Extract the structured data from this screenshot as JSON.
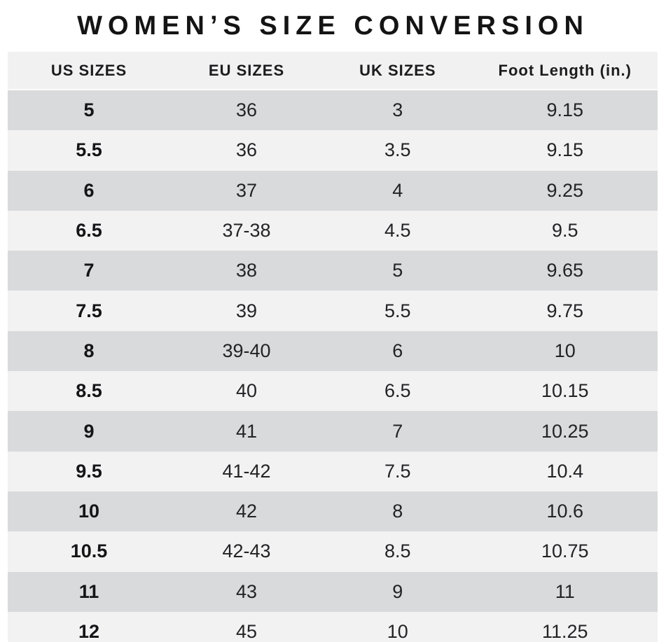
{
  "title": "WOMEN’S SIZE CONVERSION",
  "colors": {
    "row_dark": "#d9dadb",
    "row_light": "#f2f2f3",
    "header_bg": "#f1f1f1",
    "text": "#1d1d1f",
    "background": "#ffffff"
  },
  "chart_data": {
    "type": "table",
    "title": "WOMEN’S SIZE CONVERSION",
    "columns": [
      "US SIZES",
      "EU SIZES",
      "UK SIZES",
      "Foot Length (in.)"
    ],
    "rows": [
      {
        "us": "5",
        "eu": "36",
        "uk": "3",
        "foot": "9.15"
      },
      {
        "us": "5.5",
        "eu": "36",
        "uk": "3.5",
        "foot": "9.15"
      },
      {
        "us": "6",
        "eu": "37",
        "uk": "4",
        "foot": "9.25"
      },
      {
        "us": "6.5",
        "eu": "37-38",
        "uk": "4.5",
        "foot": "9.5"
      },
      {
        "us": "7",
        "eu": "38",
        "uk": "5",
        "foot": "9.65"
      },
      {
        "us": "7.5",
        "eu": "39",
        "uk": "5.5",
        "foot": "9.75"
      },
      {
        "us": "8",
        "eu": "39-40",
        "uk": "6",
        "foot": "10"
      },
      {
        "us": "8.5",
        "eu": "40",
        "uk": "6.5",
        "foot": "10.15"
      },
      {
        "us": "9",
        "eu": "41",
        "uk": "7",
        "foot": "10.25"
      },
      {
        "us": "9.5",
        "eu": "41-42",
        "uk": "7.5",
        "foot": "10.4"
      },
      {
        "us": "10",
        "eu": "42",
        "uk": "8",
        "foot": "10.6"
      },
      {
        "us": "10.5",
        "eu": "42-43",
        "uk": "8.5",
        "foot": "10.75"
      },
      {
        "us": "11",
        "eu": "43",
        "uk": "9",
        "foot": "11"
      },
      {
        "us": "12",
        "eu": "45",
        "uk": "10",
        "foot": "11.25"
      }
    ]
  }
}
